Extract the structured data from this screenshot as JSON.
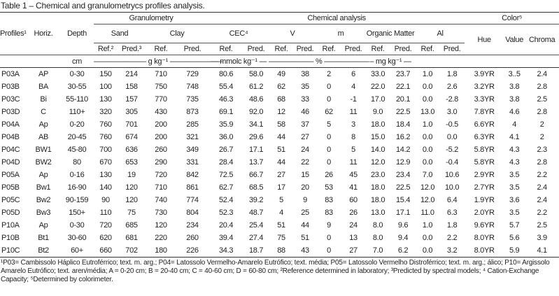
{
  "title": "Table 1 – Chemical and granulometrycs profiles analysis.",
  "header": {
    "profiles": "Profiles¹",
    "horiz": "Horiz.",
    "depth": "Depth",
    "granulometry": "Granulometry",
    "sand": "Sand",
    "clay": "Clay",
    "chemical": "Chemical analysis",
    "cec": "CEC⁴",
    "v": "V",
    "m": "m",
    "om": "Organic Matter",
    "al": "Al",
    "color": "Color⁵",
    "hue": "Hue",
    "value": "Value",
    "chroma": "Chroma",
    "sub": [
      "Ref.²",
      "Pred.³",
      "Ref.",
      "Pred.",
      "Ref.",
      "Pred.",
      "Ref.",
      "Pred.",
      "Ref.",
      "Pred.",
      "Ref.",
      "Pred.",
      "Ref.",
      "Pred."
    ]
  },
  "units": {
    "depth": "cm",
    "granulometry": "——————— g kg⁻¹ ———————",
    "cec": "— mmolc kg⁻¹ —",
    "vm": "—————— % ——————",
    "om": "– mg kg⁻¹ —"
  },
  "table": {
    "rows": [
      [
        "P03A",
        "AP",
        "0-30",
        "150",
        "214",
        "710",
        "729",
        "80.6",
        "58.0",
        "49",
        "38",
        "2",
        "6",
        "33.0",
        "23.7",
        "1.0",
        "1.8",
        "3.9YR",
        "3..5",
        "2.4"
      ],
      [
        "P03B",
        "BA",
        "30-55",
        "100",
        "158",
        "750",
        "748",
        "55.4",
        "61.2",
        "62",
        "35",
        "0",
        "4",
        "22.0",
        "22.1",
        "0.0",
        "2.6",
        "3.2YR",
        "3.8",
        "2.8"
      ],
      [
        "P03C",
        "Bi",
        "55-110",
        "130",
        "157",
        "770",
        "735",
        "46.3",
        "48.6",
        "68",
        "33",
        "0",
        "-1",
        "17.0",
        "20.1",
        "0.0",
        "-2.8",
        "3.3YR",
        "3.8",
        "2.5"
      ],
      [
        "P03D",
        "C",
        "110+",
        "320",
        "305",
        "430",
        "873",
        "69.1",
        "92.0",
        "12",
        "46",
        "62",
        "11",
        "9.0",
        "22.5",
        "13.0",
        "3.0",
        "7.8YR",
        "4.6",
        "2.8"
      ],
      [
        "P04A",
        "Ap",
        "0-20",
        "760",
        "701",
        "200",
        "285",
        "35.9",
        "34.1",
        "58",
        "37",
        "5",
        "3",
        "18.0",
        "18.4",
        "1.0",
        "-0.5",
        "6.6YR",
        "4",
        "2"
      ],
      [
        "P04B",
        "AB",
        "20-45",
        "760",
        "674",
        "200",
        "321",
        "36.0",
        "29.6",
        "44",
        "27",
        "0",
        "8",
        "15.0",
        "16.2",
        "0.0",
        "0.0",
        "6.3YR",
        "4.1",
        "2"
      ],
      [
        "P04C",
        "BW1",
        "45-80",
        "700",
        "636",
        "260",
        "349",
        "26.7",
        "17.1",
        "51",
        "24",
        "0",
        "5",
        "14.0",
        "14.2",
        "0.0",
        "-5.2",
        "5.8YR",
        "4.3",
        "2.3"
      ],
      [
        "P04D",
        "BW2",
        "80",
        "670",
        "653",
        "290",
        "331",
        "28.4",
        "13.7",
        "44",
        "22",
        "0",
        "11",
        "12.0",
        "12.9",
        "0.0",
        "-0.4",
        "5.8YR",
        "4.3",
        "2.8"
      ],
      [
        "P05A",
        "Ap",
        "0-16",
        "130",
        "19",
        "720",
        "842",
        "72.5",
        "66.7",
        "27",
        "15",
        "26",
        "45",
        "23.0",
        "23.4",
        "7.0",
        "10.6",
        "2.9YR",
        "3.5",
        "2.2"
      ],
      [
        "P05B",
        "Bw1",
        "16-90",
        "140",
        "120",
        "710",
        "861",
        "62.7",
        "68.5",
        "17",
        "20",
        "53",
        "41",
        "18.0",
        "22.5",
        "12.0",
        "10.0",
        "2.7YR",
        "3.5",
        "2.4"
      ],
      [
        "P05C",
        "Bw2",
        "90-159",
        "90",
        "120",
        "740",
        "774",
        "52.4",
        "39.2",
        "5",
        "9",
        "83",
        "60",
        "18.0",
        "15.4",
        "12.0",
        "6.4",
        "1.9YR",
        "3.6",
        "2.4"
      ],
      [
        "P05D",
        "Bw3",
        "150+",
        "110",
        "75",
        "730",
        "804",
        "52.3",
        "48.7",
        "4",
        "25",
        "83",
        "26",
        "13.0",
        "17.1",
        "11.0",
        "6.3",
        "2.0YR",
        "3.5",
        "2.2"
      ],
      [
        "P10A",
        "Ap",
        "0-30",
        "720",
        "685",
        "120",
        "234",
        "20.4",
        "25.4",
        "51",
        "44",
        "9",
        "24",
        "8.0",
        "9.6",
        "1.0",
        "1.8",
        "9.6YR",
        "5.7",
        "2.5"
      ],
      [
        "P10B",
        "Bt1",
        "30-60",
        "620",
        "681",
        "220",
        "260",
        "39.4",
        "27.4",
        "75",
        "51",
        "0",
        "13",
        "8.0",
        "9.4",
        "0.0",
        "2.2",
        "8.0YR",
        "5.6",
        "3.9"
      ],
      [
        "P10C",
        "Bt2",
        "60+",
        "660",
        "702",
        "180",
        "226",
        "34.3",
        "18.7",
        "88",
        "43",
        "0",
        "27",
        "7.0",
        "6.2",
        "0.0",
        "3.2",
        "8.0YR",
        "5.9",
        "4.1"
      ]
    ]
  },
  "footnotes": "¹P03= Cambissolo Háplico Eutroférrico; text. m. arg.; P04= Latossolo Vermelho-Amarelo Eutrófico; text. média; P05= Latossolo Vermelho Distroférrico; text. m. arg.; álico; P10= Argissolo Amarelo Eutrófico; text. aren/média; A = 0-20 cm; B = 20-40 cm; C = 40-60 cm; D = 60-80 cm; ²Reference determined in laboratory; ³Predicted by spectral models; ⁴ Cation-Exchange Capacity; ⁵Determined by colorimeter."
}
